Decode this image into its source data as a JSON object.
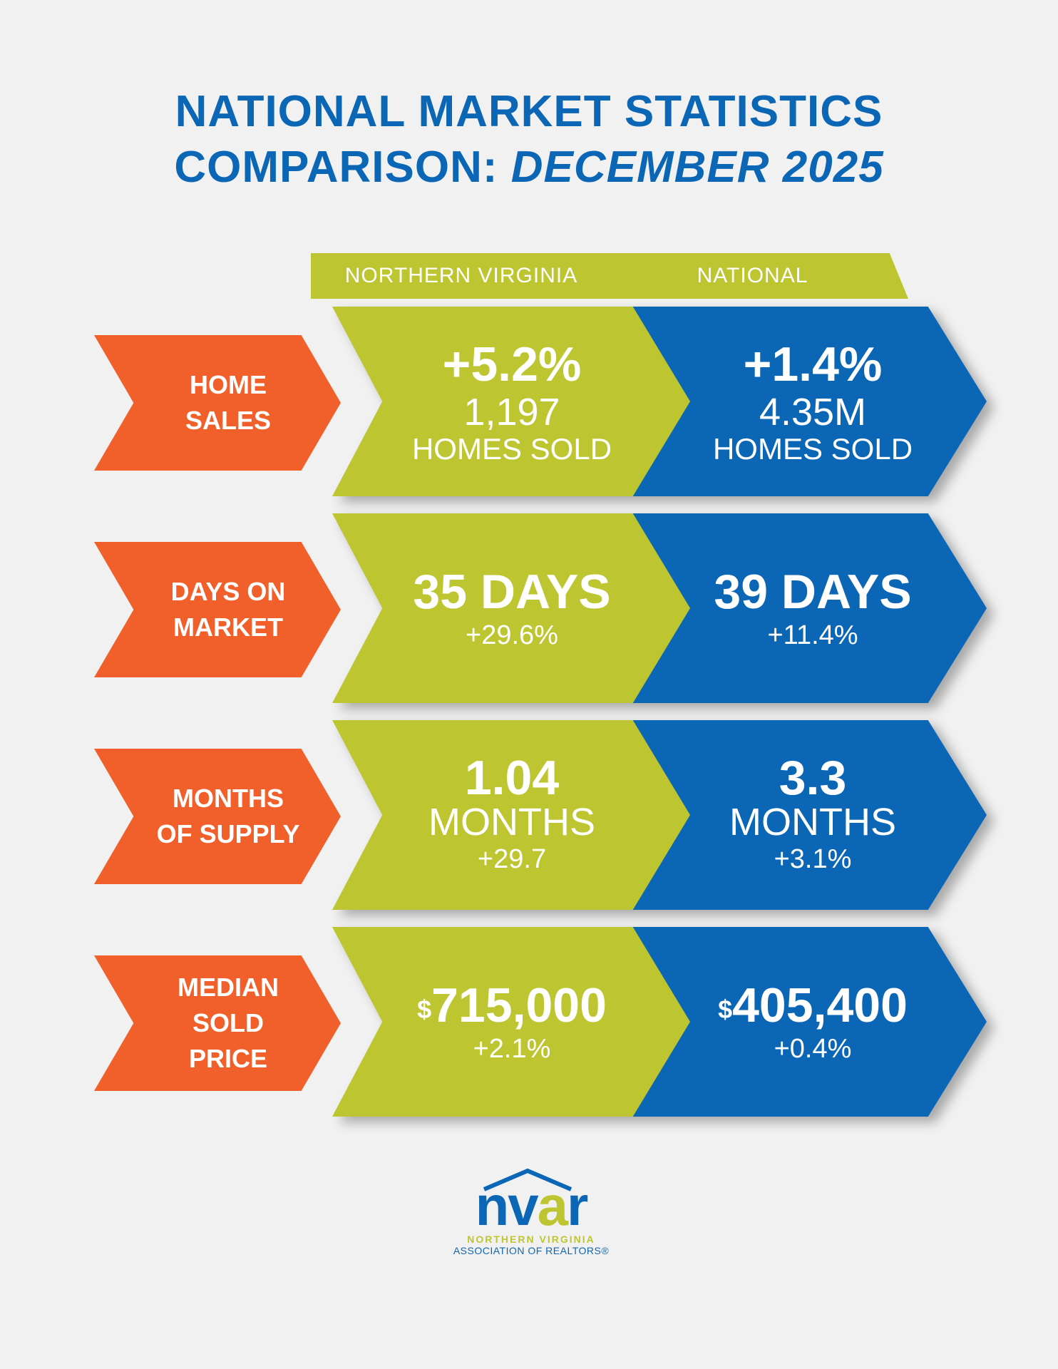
{
  "title": {
    "line1": "NATIONAL MARKET STATISTICS",
    "line2_prefix": "COMPARISON: ",
    "line2_italic": "DECEMBER 2025"
  },
  "columns": {
    "left": "NORTHERN VIRGINIA",
    "right": "NATIONAL"
  },
  "rows": [
    {
      "label1": "HOME",
      "label2": "SALES",
      "nova": {
        "big": "+5.2%",
        "mid": "1,197",
        "sm": "HOMES SOLD"
      },
      "nat": {
        "big": "+1.4%",
        "mid": "4.35M",
        "sm": "HOMES SOLD"
      }
    },
    {
      "label1": "DAYS ON",
      "label2": "MARKET",
      "nova": {
        "big": "35 DAYS",
        "sm": "+29.6%"
      },
      "nat": {
        "big": "39 DAYS",
        "sm": "+11.4%"
      }
    },
    {
      "label1": "MONTHS",
      "label2": "OF SUPPLY",
      "nova": {
        "big": "1.04",
        "mid": "MONTHS",
        "sm": "+29.7"
      },
      "nat": {
        "big": "3.3",
        "mid": "MONTHS",
        "sm": "+3.1%"
      }
    },
    {
      "label1": "MEDIAN",
      "label2": "SOLD PRICE",
      "nova": {
        "cur": "$",
        "big": "715,000",
        "sm": "+2.1%"
      },
      "nat": {
        "cur": "$",
        "big": "405,400",
        "sm": "+0.4%"
      }
    }
  ],
  "logo": {
    "word_n": "n",
    "word_v": "v",
    "word_a": "a",
    "word_r": "r",
    "line1": "NORTHERN VIRGINIA",
    "line2": "ASSOCIATION OF REALTORS®"
  },
  "colors": {
    "background": "#f1f1f1",
    "blue": "#0c66b6",
    "green": "#bdc631",
    "orange": "#f1602a"
  }
}
